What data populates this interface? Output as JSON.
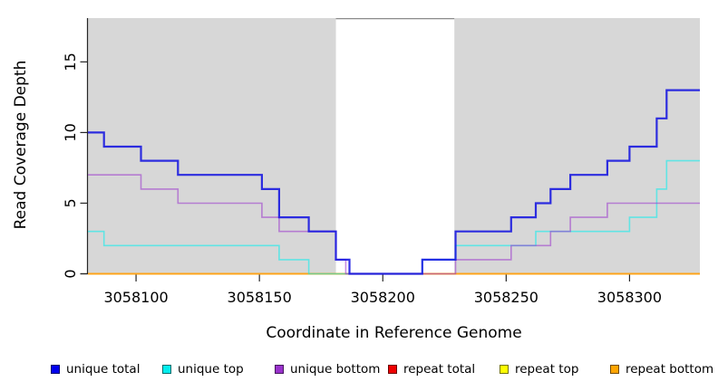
{
  "chart_data": {
    "type": "step-line",
    "title": "",
    "xlabel": "Coordinate in Reference Genome",
    "ylabel": "Read Coverage Depth",
    "xlim": [
      3058080.5,
      3058328.5
    ],
    "ylim": [
      0,
      18.1
    ],
    "x_ticks": [
      3058100,
      3058150,
      3058200,
      3058250,
      3058300
    ],
    "y_ticks": [
      0,
      5,
      10,
      15
    ],
    "grid": false,
    "plot_bg": "#d7d7d7",
    "page_bg": "#ffffff",
    "axis_color": "#262626",
    "tick_label_color": "#000000",
    "gap_band": {
      "from": 3058181,
      "to": 3058229,
      "fill": "#ffffff",
      "top_border": "#8a8a8a"
    },
    "series": [
      {
        "id": "repeat-total",
        "label": "repeat total",
        "color": "#ee0000",
        "opacity": 0.9,
        "width": 1.5,
        "steps": [
          [
            3058080.5,
            0
          ]
        ],
        "end": 3058328.5
      },
      {
        "id": "repeat-top",
        "label": "repeat top",
        "color": "#ffff00",
        "opacity": 1,
        "width": 1.5,
        "steps": [
          [
            3058080.5,
            0
          ]
        ],
        "end": 3058328.5
      },
      {
        "id": "repeat-bottom",
        "label": "repeat bottom",
        "color": "#ffa318",
        "opacity": 1,
        "width": 1.8,
        "steps": [
          [
            3058080.5,
            0
          ]
        ],
        "end": 3058328.5
      },
      {
        "id": "unique-top",
        "label": "unique top",
        "color": "#00eeee",
        "opacity": 0.55,
        "width": 1.6,
        "steps": [
          [
            3058080.5,
            3
          ],
          [
            3058087,
            2
          ],
          [
            3058158,
            1
          ],
          [
            3058170,
            0
          ],
          [
            3058216,
            1
          ],
          [
            3058229.5,
            2
          ],
          [
            3058262,
            3
          ],
          [
            3058300,
            4
          ],
          [
            3058311,
            6
          ],
          [
            3058315,
            8
          ]
        ],
        "end": 3058328.5
      },
      {
        "id": "unique-bottom",
        "label": "unique bottom",
        "color": "#9932cc",
        "opacity": 0.55,
        "width": 1.6,
        "steps": [
          [
            3058080.5,
            7
          ],
          [
            3058102,
            6
          ],
          [
            3058117,
            5
          ],
          [
            3058151,
            4
          ],
          [
            3058158,
            3
          ],
          [
            3058181,
            1
          ],
          [
            3058185,
            0
          ],
          [
            3058229.5,
            1
          ],
          [
            3058252,
            2
          ],
          [
            3058268,
            3
          ],
          [
            3058276,
            4
          ],
          [
            3058291,
            5
          ]
        ],
        "end": 3058328.5
      },
      {
        "id": "unique-total",
        "label": "unique total",
        "color": "#1414e0",
        "opacity": 0.88,
        "width": 2.2,
        "steps": [
          [
            3058080.5,
            10
          ],
          [
            3058087,
            9
          ],
          [
            3058102,
            8
          ],
          [
            3058117,
            7
          ],
          [
            3058151,
            6
          ],
          [
            3058158,
            4
          ],
          [
            3058170,
            3
          ],
          [
            3058181,
            1
          ],
          [
            3058186.5,
            0
          ],
          [
            3058216,
            1
          ],
          [
            3058229.5,
            3
          ],
          [
            3058252,
            4
          ],
          [
            3058262,
            5
          ],
          [
            3058268,
            6
          ],
          [
            3058276,
            7
          ],
          [
            3058291,
            8
          ],
          [
            3058300,
            9
          ],
          [
            3058311,
            11
          ],
          [
            3058315,
            13
          ]
        ],
        "end": 3058328.5
      }
    ],
    "legend": [
      {
        "label": "unique total",
        "color": "#0000ee"
      },
      {
        "label": "unique top",
        "color": "#00eeee"
      },
      {
        "label": "unique bottom",
        "color": "#9932cc"
      },
      {
        "label": "repeat total",
        "color": "#ee0000"
      },
      {
        "label": "repeat top",
        "color": "#ffff00"
      },
      {
        "label": "repeat bottom",
        "color": "#ffa500"
      }
    ],
    "legend_position": "bottom"
  }
}
